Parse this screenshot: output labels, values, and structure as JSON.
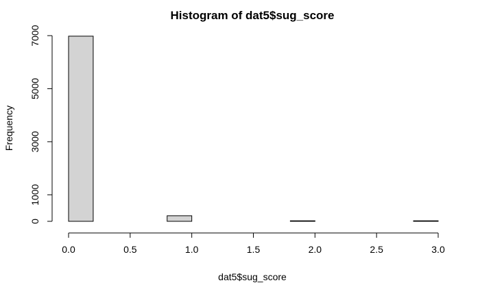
{
  "chart_data": {
    "type": "bar",
    "title": "Histogram of dat5$sug_score",
    "xlabel": "dat5$sug_score",
    "ylabel": "Frequency",
    "bins": [
      {
        "from": 0.0,
        "to": 0.2,
        "count": 6980
      },
      {
        "from": 0.2,
        "to": 0.4,
        "count": 0
      },
      {
        "from": 0.4,
        "to": 0.6,
        "count": 0
      },
      {
        "from": 0.6,
        "to": 0.8,
        "count": 0
      },
      {
        "from": 0.8,
        "to": 1.0,
        "count": 210
      },
      {
        "from": 1.0,
        "to": 1.2,
        "count": 0
      },
      {
        "from": 1.2,
        "to": 1.4,
        "count": 0
      },
      {
        "from": 1.4,
        "to": 1.6,
        "count": 0
      },
      {
        "from": 1.6,
        "to": 1.8,
        "count": 0
      },
      {
        "from": 1.8,
        "to": 2.0,
        "count": 20
      },
      {
        "from": 2.0,
        "to": 2.2,
        "count": 0
      },
      {
        "from": 2.2,
        "to": 2.4,
        "count": 0
      },
      {
        "from": 2.4,
        "to": 2.6,
        "count": 0
      },
      {
        "from": 2.6,
        "to": 2.8,
        "count": 0
      },
      {
        "from": 2.8,
        "to": 3.0,
        "count": 20
      }
    ],
    "xlim": [
      0,
      3
    ],
    "ylim": [
      0,
      7000
    ],
    "x_ticks": [
      0.0,
      0.5,
      1.0,
      1.5,
      2.0,
      2.5,
      3.0
    ],
    "x_tick_labels": [
      "0.0",
      "0.5",
      "1.0",
      "1.5",
      "2.0",
      "2.5",
      "3.0"
    ],
    "y_ticks": [
      0,
      1000,
      3000,
      5000,
      7000
    ],
    "y_tick_labels": [
      "0",
      "1000",
      "3000",
      "5000",
      "7000"
    ],
    "grid": false,
    "bar_color": "#d3d3d3",
    "edge_color": "#000000"
  }
}
